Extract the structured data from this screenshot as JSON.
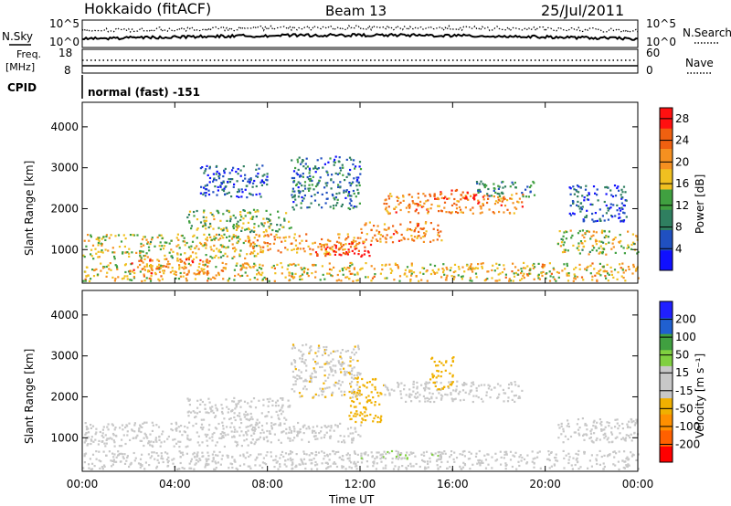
{
  "header": {
    "station": "Hokkaido (fitACF)",
    "beam": "Beam 13",
    "date": "25/Jul/2011"
  },
  "summary_panels": {
    "nsky_label": "N.Sky",
    "nsky_ticks": [
      "10^5",
      "10^0"
    ],
    "nsearch_label": "N.Search",
    "nsearch_ticks": [
      "10^5",
      "10^0"
    ],
    "freq_label_1": "Freq.",
    "freq_label_2": "[MHz]",
    "freq_ticks": [
      "18",
      "8"
    ],
    "nave_label": "Nave",
    "nave_ticks": [
      "60",
      "0"
    ],
    "cpid_label": "CPID",
    "cpid_value": "normal (fast) -151"
  },
  "colors": {
    "power_scale": [
      "#1010ff",
      "#2050c0",
      "#2f7f60",
      "#40a040",
      "#f0c020",
      "#f59020",
      "#f06010",
      "#ff1010"
    ],
    "velocity_scale": [
      "#ff0000",
      "#ff6000",
      "#ff9000",
      "#f0b000",
      "#c8c8c8",
      "#c8c8c8",
      "#80d040",
      "#40a040",
      "#2060d0",
      "#2020ff"
    ]
  },
  "chart_data": [
    {
      "type": "heatmap",
      "name": "power",
      "ylabel": "Slant Range [km]",
      "xlabel": "",
      "x_ticks": [
        "00:00",
        "04:00",
        "08:00",
        "12:00",
        "16:00",
        "20:00",
        "00:00"
      ],
      "y_ticks": [
        "1000",
        "2000",
        "3000",
        "4000"
      ],
      "ylim": [
        180,
        4600
      ],
      "xlim_hours": [
        0,
        24
      ],
      "colorbar": {
        "label": "Power [dB]",
        "ticks": [
          "4",
          "8",
          "12",
          "16",
          "20",
          "24",
          "28"
        ],
        "range": [
          0,
          30
        ]
      },
      "echo_bands": [
        {
          "t0": 0.0,
          "t1": 24.0,
          "r0": 250,
          "r1": 700,
          "power": 18
        },
        {
          "t0": 0.0,
          "t1": 7.5,
          "r0": 800,
          "r1": 1400,
          "power": 16
        },
        {
          "t0": 2.0,
          "t1": 5.5,
          "r0": 400,
          "r1": 800,
          "power": 22
        },
        {
          "t0": 4.5,
          "t1": 9.0,
          "r0": 1450,
          "r1": 2000,
          "power": 14
        },
        {
          "t0": 7.0,
          "t1": 12.0,
          "r0": 900,
          "r1": 1400,
          "power": 20
        },
        {
          "t0": 10.0,
          "t1": 12.5,
          "r0": 850,
          "r1": 1200,
          "power": 26
        },
        {
          "t0": 12.0,
          "t1": 15.5,
          "r0": 1200,
          "r1": 1700,
          "power": 22
        },
        {
          "t0": 13.0,
          "t1": 19.0,
          "r0": 1900,
          "r1": 2400,
          "power": 22
        },
        {
          "t0": 15.0,
          "t1": 17.0,
          "r0": 2250,
          "r1": 2500,
          "power": 26
        },
        {
          "t0": 17.0,
          "t1": 19.5,
          "r0": 2300,
          "r1": 2700,
          "power": 10
        },
        {
          "t0": 9.0,
          "t1": 12.0,
          "r0": 2000,
          "r1": 3300,
          "power": 8
        },
        {
          "t0": 20.5,
          "t1": 24.0,
          "r0": 900,
          "r1": 1500,
          "power": 16
        },
        {
          "t0": 21.0,
          "t1": 23.5,
          "r0": 1700,
          "r1": 2600,
          "power": 6
        },
        {
          "t0": 5.0,
          "t1": 8.0,
          "r0": 2300,
          "r1": 3100,
          "power": 6
        }
      ]
    },
    {
      "type": "heatmap",
      "name": "velocity",
      "ylabel": "Slant Range [km]",
      "xlabel": "Time UT",
      "x_ticks": [
        "00:00",
        "04:00",
        "08:00",
        "12:00",
        "16:00",
        "20:00",
        "00:00"
      ],
      "y_ticks": [
        "1000",
        "2000",
        "3000",
        "4000"
      ],
      "ylim": [
        180,
        4600
      ],
      "xlim_hours": [
        0,
        24
      ],
      "colorbar": {
        "label": "Velocity [m s⁻¹]",
        "ticks": [
          "-200",
          "-100",
          "-50",
          "-15",
          "15",
          "50",
          "100",
          "200"
        ],
        "range": [
          -250,
          250
        ]
      },
      "echo_bands": [
        {
          "t0": 0.0,
          "t1": 24.0,
          "r0": 250,
          "r1": 700,
          "velocity": 0
        },
        {
          "t0": 0.0,
          "t1": 7.5,
          "r0": 800,
          "r1": 1400,
          "velocity": 0
        },
        {
          "t0": 4.5,
          "t1": 9.0,
          "r0": 1450,
          "r1": 2000,
          "velocity": -30
        },
        {
          "t0": 7.0,
          "t1": 12.0,
          "r0": 900,
          "r1": 1400,
          "velocity": 0
        },
        {
          "t0": 11.5,
          "t1": 13.0,
          "r0": 1400,
          "r1": 2500,
          "velocity": -80
        },
        {
          "t0": 13.0,
          "t1": 19.0,
          "r0": 1900,
          "r1": 2400,
          "velocity": 0
        },
        {
          "t0": 15.0,
          "t1": 16.0,
          "r0": 2200,
          "r1": 3000,
          "velocity": -70
        },
        {
          "t0": 12.0,
          "t1": 16.0,
          "r0": 500,
          "r1": 700,
          "velocity": 40
        },
        {
          "t0": 20.5,
          "t1": 24.0,
          "r0": 900,
          "r1": 1500,
          "velocity": 0
        },
        {
          "t0": 9.0,
          "t1": 12.0,
          "r0": 2000,
          "r1": 3300,
          "velocity": -40
        }
      ]
    }
  ]
}
